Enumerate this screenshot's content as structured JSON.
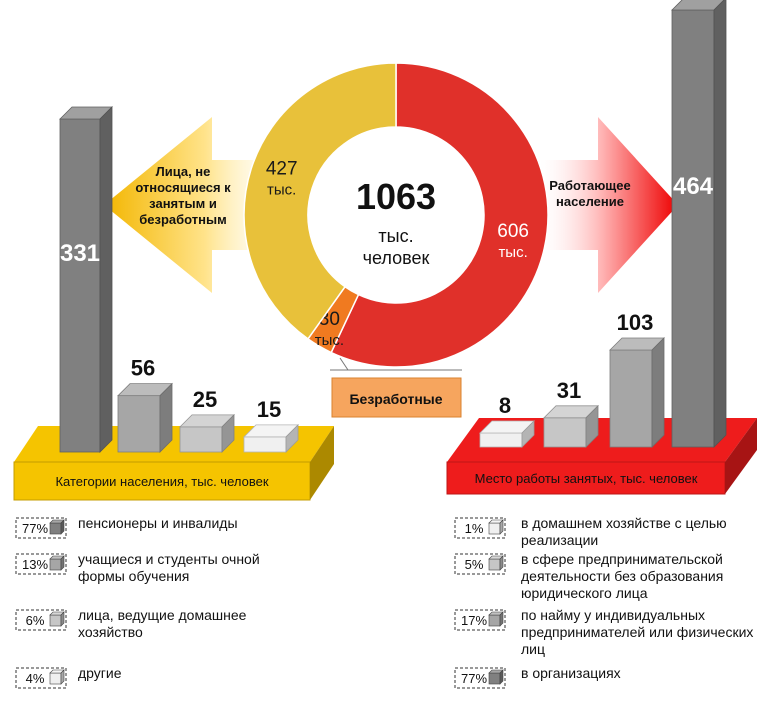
{
  "chart_data": [
    {
      "type": "pie",
      "center_total": "1063",
      "center_unit_line1": "тыс.",
      "center_unit_line2": "человек",
      "slices": [
        {
          "label": "Работающее население",
          "value": 606,
          "value_text": "606",
          "unit": "тыс.",
          "color": "#e0302a"
        },
        {
          "label": "Безработные",
          "value": 30,
          "value_text": "30",
          "unit": "тыс.",
          "color": "#f07a20"
        },
        {
          "label": "Лица, не относящиеся к занятым и безработным",
          "value": 427,
          "value_text": "427",
          "unit": "тыс.",
          "color": "#e8c13a"
        }
      ],
      "callouts": {
        "left": "Лица, не относящиеся к занятым и безработным",
        "right": "Работающее население",
        "bottom": "Безработные"
      }
    },
    {
      "type": "bar",
      "title": "Категории населения, тыс. человек",
      "categories": [
        "пенсионеры и инвалиды",
        "учащиеся и студенты очной формы обучения",
        "лица, ведущие домашнее хозяйство",
        "другие"
      ],
      "values": [
        331,
        56,
        25,
        15
      ],
      "percents": [
        "77%",
        "13%",
        "6%",
        "4%"
      ],
      "colors": [
        "#808080",
        "#a6a6a6",
        "#c6c6c6",
        "#f0f0f0"
      ],
      "platform_color": "#f5c400"
    },
    {
      "type": "bar",
      "title": "Место работы занятых, тыс. человек",
      "categories": [
        "в домашнем хозяйстве с целью реализации",
        "в сфере предпринимательской деятельности без образования юридического лица",
        "по найму у индивидуальных предпринимателей или физических лиц",
        "в организациях"
      ],
      "values": [
        8,
        31,
        103,
        464
      ],
      "percents": [
        "1%",
        "5%",
        "17%",
        "77%"
      ],
      "colors": [
        "#f0f0f0",
        "#c6c6c6",
        "#a6a6a6",
        "#808080"
      ],
      "platform_color": "#ee1c1c"
    }
  ]
}
